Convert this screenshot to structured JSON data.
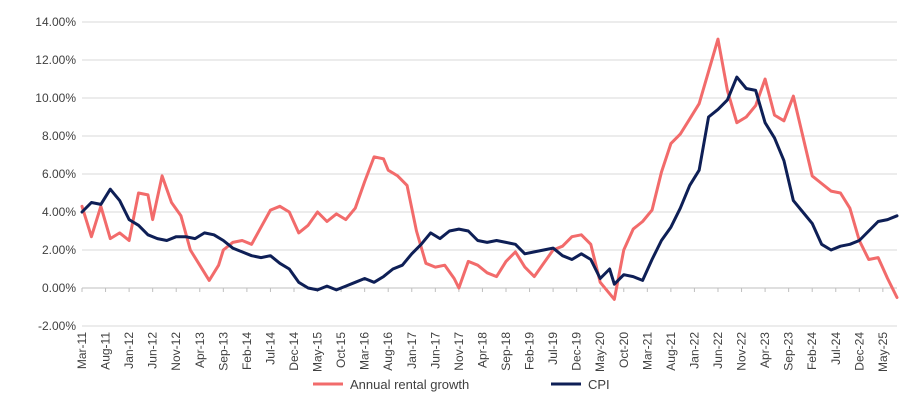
{
  "chart_data": {
    "type": "line",
    "title": "",
    "xlabel": "",
    "ylabel": "",
    "ylim": [
      -2,
      14
    ],
    "y_ticks": [
      "-2.00%",
      "0.00%",
      "2.00%",
      "4.00%",
      "6.00%",
      "8.00%",
      "10.00%",
      "12.00%",
      "14.00%"
    ],
    "x_tick_labels": [
      "Mar-11",
      "Aug-11",
      "Jan-12",
      "Jun-12",
      "Nov-12",
      "Apr-13",
      "Sep-13",
      "Feb-14",
      "Jul-14",
      "Dec-14",
      "May-15",
      "Oct-15",
      "Mar-16",
      "Aug-16",
      "Jan-17",
      "Jun-17",
      "Nov-17",
      "Apr-18",
      "Sep-18",
      "Feb-19",
      "Jul-19",
      "Dec-19",
      "May-20",
      "Oct-20",
      "Mar-21",
      "Aug-21",
      "Jan-22",
      "Jun-22",
      "Nov-22",
      "Apr-23",
      "Sep-23",
      "Feb-24",
      "Jul-24",
      "Dec-24",
      "May-25"
    ],
    "x_range": [
      "Mar-11",
      "Aug-25"
    ],
    "grid": "horizontal",
    "legend_position": "bottom",
    "series": [
      {
        "name": "Annual rental growth",
        "color": "#F26B6B",
        "points": [
          [
            "Mar-11",
            4.3
          ],
          [
            "May-11",
            2.7
          ],
          [
            "Jul-11",
            4.3
          ],
          [
            "Sep-11",
            2.6
          ],
          [
            "Nov-11",
            2.9
          ],
          [
            "Jan-12",
            2.5
          ],
          [
            "Mar-12",
            5.0
          ],
          [
            "May-12",
            4.9
          ],
          [
            "Jun-12",
            3.6
          ],
          [
            "Aug-12",
            5.9
          ],
          [
            "Oct-12",
            4.5
          ],
          [
            "Dec-12",
            3.8
          ],
          [
            "Feb-13",
            2.0
          ],
          [
            "Apr-13",
            1.2
          ],
          [
            "Jun-13",
            0.4
          ],
          [
            "Aug-13",
            1.2
          ],
          [
            "Sep-13",
            2.0
          ],
          [
            "Nov-13",
            2.4
          ],
          [
            "Jan-14",
            2.5
          ],
          [
            "Mar-14",
            2.3
          ],
          [
            "May-14",
            3.2
          ],
          [
            "Jul-14",
            4.1
          ],
          [
            "Sep-14",
            4.3
          ],
          [
            "Nov-14",
            4.0
          ],
          [
            "Jan-15",
            2.9
          ],
          [
            "Mar-15",
            3.3
          ],
          [
            "May-15",
            4.0
          ],
          [
            "Jul-15",
            3.5
          ],
          [
            "Sep-15",
            3.9
          ],
          [
            "Nov-15",
            3.6
          ],
          [
            "Jan-16",
            4.2
          ],
          [
            "Mar-16",
            5.6
          ],
          [
            "May-16",
            6.9
          ],
          [
            "Jul-16",
            6.8
          ],
          [
            "Aug-16",
            6.2
          ],
          [
            "Oct-16",
            5.9
          ],
          [
            "Dec-16",
            5.4
          ],
          [
            "Feb-17",
            3.0
          ],
          [
            "Apr-17",
            1.3
          ],
          [
            "Jun-17",
            1.1
          ],
          [
            "Aug-17",
            1.2
          ],
          [
            "Oct-17",
            0.5
          ],
          [
            "Nov-17",
            0.0
          ],
          [
            "Jan-18",
            1.4
          ],
          [
            "Mar-18",
            1.2
          ],
          [
            "May-18",
            0.8
          ],
          [
            "Jul-18",
            0.6
          ],
          [
            "Sep-18",
            1.4
          ],
          [
            "Nov-18",
            1.9
          ],
          [
            "Jan-19",
            1.1
          ],
          [
            "Mar-19",
            0.6
          ],
          [
            "May-19",
            1.3
          ],
          [
            "Jul-19",
            2.0
          ],
          [
            "Sep-19",
            2.2
          ],
          [
            "Nov-19",
            2.7
          ],
          [
            "Jan-20",
            2.8
          ],
          [
            "Mar-20",
            2.3
          ],
          [
            "May-20",
            0.3
          ],
          [
            "Jul-20",
            -0.3
          ],
          [
            "Aug-20",
            -0.6
          ],
          [
            "Oct-20",
            2.0
          ],
          [
            "Dec-20",
            3.1
          ],
          [
            "Feb-21",
            3.5
          ],
          [
            "Apr-21",
            4.1
          ],
          [
            "Jun-21",
            6.1
          ],
          [
            "Aug-21",
            7.6
          ],
          [
            "Oct-21",
            8.1
          ],
          [
            "Dec-21",
            8.9
          ],
          [
            "Feb-22",
            9.7
          ],
          [
            "Apr-22",
            11.4
          ],
          [
            "Jun-22",
            13.1
          ],
          [
            "Aug-22",
            10.4
          ],
          [
            "Oct-22",
            8.7
          ],
          [
            "Dec-22",
            9.0
          ],
          [
            "Feb-23",
            9.6
          ],
          [
            "Apr-23",
            11.0
          ],
          [
            "Jun-23",
            9.1
          ],
          [
            "Aug-23",
            8.8
          ],
          [
            "Oct-23",
            10.1
          ],
          [
            "Dec-23",
            8.0
          ],
          [
            "Feb-24",
            5.9
          ],
          [
            "Apr-24",
            5.5
          ],
          [
            "Jun-24",
            5.1
          ],
          [
            "Aug-24",
            5.0
          ],
          [
            "Oct-24",
            4.2
          ],
          [
            "Dec-24",
            2.5
          ],
          [
            "Feb-25",
            1.5
          ],
          [
            "Apr-25",
            1.6
          ],
          [
            "Jun-25",
            0.5
          ],
          [
            "Aug-25",
            -0.5
          ]
        ]
      },
      {
        "name": "CPI",
        "color": "#0E1F56",
        "points": [
          [
            "Mar-11",
            4.0
          ],
          [
            "May-11",
            4.5
          ],
          [
            "Jul-11",
            4.4
          ],
          [
            "Sep-11",
            5.2
          ],
          [
            "Nov-11",
            4.6
          ],
          [
            "Jan-12",
            3.6
          ],
          [
            "Mar-12",
            3.3
          ],
          [
            "May-12",
            2.8
          ],
          [
            "Jul-12",
            2.6
          ],
          [
            "Sep-12",
            2.5
          ],
          [
            "Nov-12",
            2.7
          ],
          [
            "Jan-13",
            2.7
          ],
          [
            "Mar-13",
            2.6
          ],
          [
            "May-13",
            2.9
          ],
          [
            "Jul-13",
            2.8
          ],
          [
            "Sep-13",
            2.5
          ],
          [
            "Nov-13",
            2.1
          ],
          [
            "Jan-14",
            1.9
          ],
          [
            "Mar-14",
            1.7
          ],
          [
            "May-14",
            1.6
          ],
          [
            "Jul-14",
            1.7
          ],
          [
            "Sep-14",
            1.3
          ],
          [
            "Nov-14",
            1.0
          ],
          [
            "Jan-15",
            0.3
          ],
          [
            "Mar-15",
            0.0
          ],
          [
            "May-15",
            -0.1
          ],
          [
            "Jul-15",
            0.1
          ],
          [
            "Sep-15",
            -0.1
          ],
          [
            "Nov-15",
            0.1
          ],
          [
            "Jan-16",
            0.3
          ],
          [
            "Mar-16",
            0.5
          ],
          [
            "May-16",
            0.3
          ],
          [
            "Jul-16",
            0.6
          ],
          [
            "Sep-16",
            1.0
          ],
          [
            "Nov-16",
            1.2
          ],
          [
            "Jan-17",
            1.8
          ],
          [
            "Mar-17",
            2.3
          ],
          [
            "May-17",
            2.9
          ],
          [
            "Jul-17",
            2.6
          ],
          [
            "Sep-17",
            3.0
          ],
          [
            "Nov-17",
            3.1
          ],
          [
            "Jan-18",
            3.0
          ],
          [
            "Mar-18",
            2.5
          ],
          [
            "May-18",
            2.4
          ],
          [
            "Jul-18",
            2.5
          ],
          [
            "Sep-18",
            2.4
          ],
          [
            "Nov-18",
            2.3
          ],
          [
            "Jan-19",
            1.8
          ],
          [
            "Mar-19",
            1.9
          ],
          [
            "May-19",
            2.0
          ],
          [
            "Jul-19",
            2.1
          ],
          [
            "Sep-19",
            1.7
          ],
          [
            "Nov-19",
            1.5
          ],
          [
            "Jan-20",
            1.8
          ],
          [
            "Mar-20",
            1.5
          ],
          [
            "May-20",
            0.5
          ],
          [
            "Jul-20",
            1.0
          ],
          [
            "Aug-20",
            0.2
          ],
          [
            "Oct-20",
            0.7
          ],
          [
            "Dec-20",
            0.6
          ],
          [
            "Feb-21",
            0.4
          ],
          [
            "Apr-21",
            1.5
          ],
          [
            "Jun-21",
            2.5
          ],
          [
            "Aug-21",
            3.2
          ],
          [
            "Oct-21",
            4.2
          ],
          [
            "Dec-21",
            5.4
          ],
          [
            "Feb-22",
            6.2
          ],
          [
            "Apr-22",
            9.0
          ],
          [
            "Jun-22",
            9.4
          ],
          [
            "Aug-22",
            9.9
          ],
          [
            "Oct-22",
            11.1
          ],
          [
            "Dec-22",
            10.5
          ],
          [
            "Feb-23",
            10.4
          ],
          [
            "Apr-23",
            8.7
          ],
          [
            "Jun-23",
            7.9
          ],
          [
            "Aug-23",
            6.7
          ],
          [
            "Oct-23",
            4.6
          ],
          [
            "Dec-23",
            4.0
          ],
          [
            "Feb-24",
            3.4
          ],
          [
            "Apr-24",
            2.3
          ],
          [
            "Jun-24",
            2.0
          ],
          [
            "Aug-24",
            2.2
          ],
          [
            "Oct-24",
            2.3
          ],
          [
            "Dec-24",
            2.5
          ],
          [
            "Feb-25",
            3.0
          ],
          [
            "Apr-25",
            3.5
          ],
          [
            "Jun-25",
            3.6
          ],
          [
            "Aug-25",
            3.8
          ]
        ]
      }
    ]
  }
}
